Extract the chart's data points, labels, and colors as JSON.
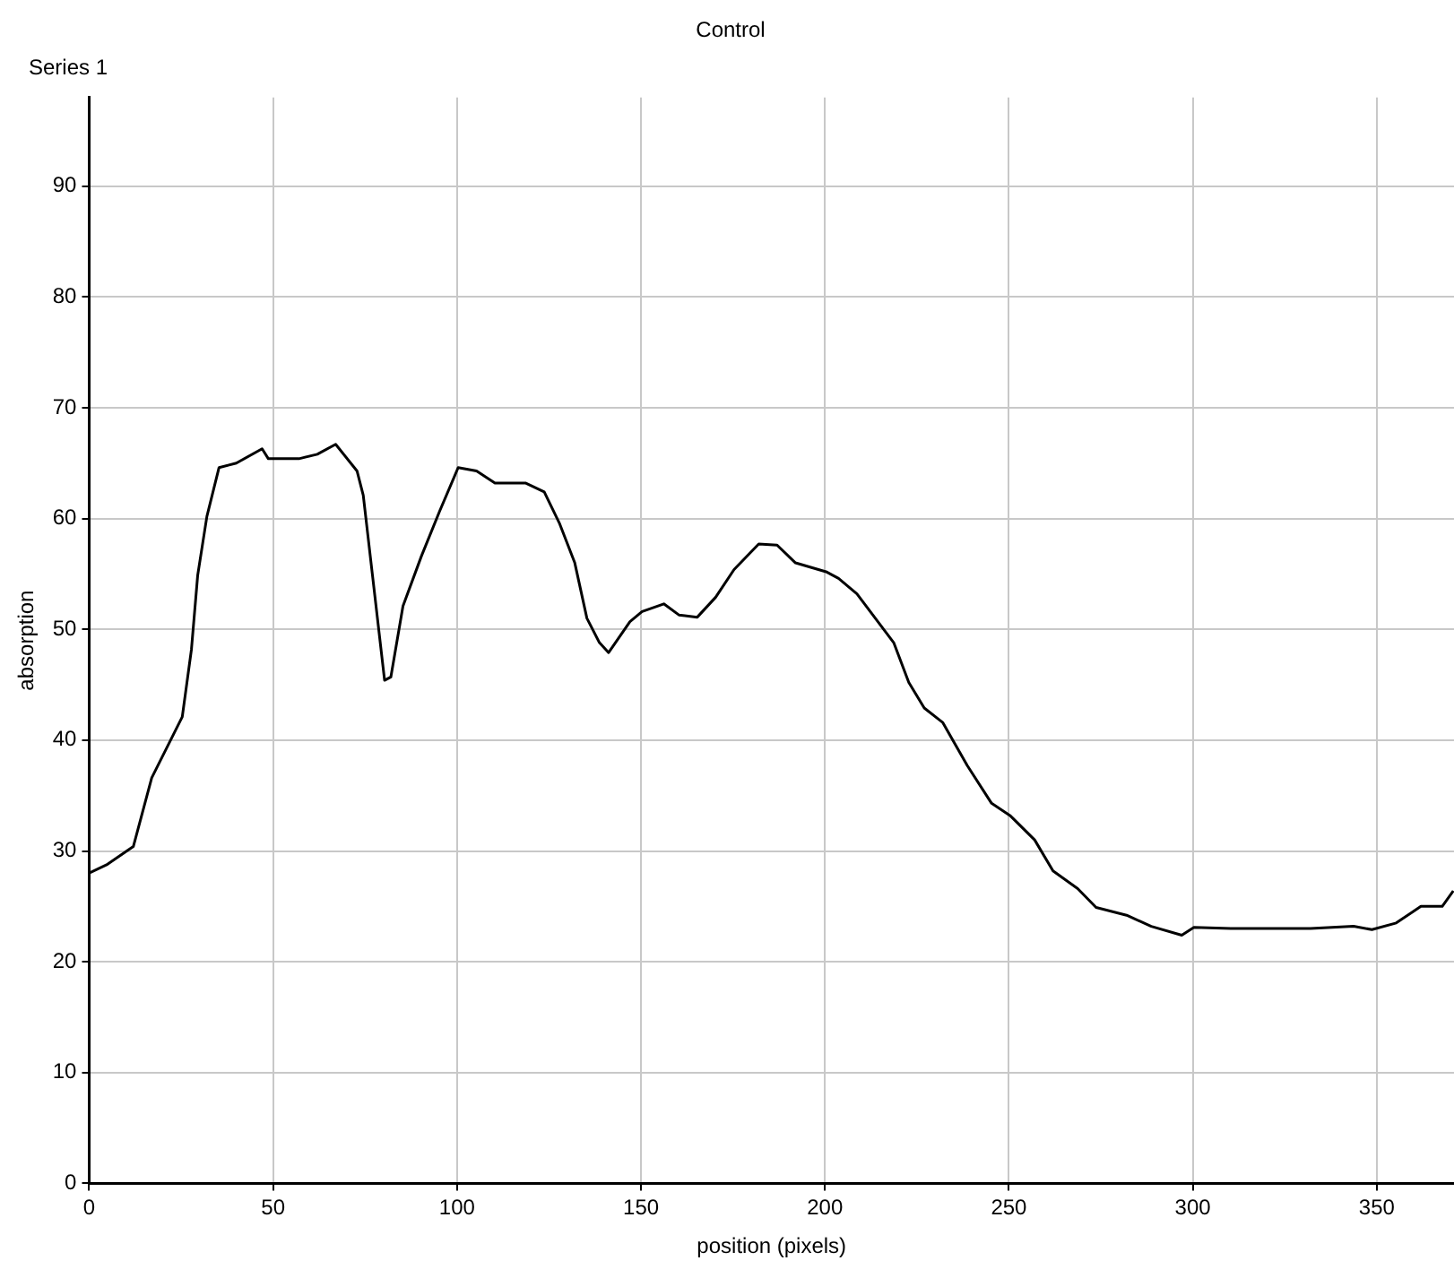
{
  "chart_data": {
    "type": "line",
    "title": "Control",
    "xlabel": "position (pixels)",
    "ylabel": "absorption",
    "xlim": [
      0,
      371
    ],
    "ylim": [
      0,
      98
    ],
    "xticks": [
      0,
      50,
      100,
      150,
      200,
      250,
      300,
      350
    ],
    "yticks": [
      0,
      10,
      20,
      30,
      40,
      50,
      60,
      70,
      80,
      90
    ],
    "grid": true,
    "legend": "top left",
    "marker": "none",
    "line_style": "solid",
    "series": [
      {
        "name": "Series 1",
        "color": "#000000",
        "x": [
          0,
          5,
          12,
          17,
          25.3,
          27.8,
          29.5,
          32,
          35.3,
          40,
          47,
          48.7,
          57,
          62,
          67,
          72.8,
          74.5,
          77,
          80.3,
          82,
          85.3,
          90.3,
          95.3,
          100.3,
          105.3,
          110.3,
          118.7,
          123.7,
          127.8,
          132,
          135.3,
          138.7,
          141.2,
          147,
          150.3,
          156.2,
          160.3,
          165.3,
          170.3,
          175.3,
          182,
          187,
          192,
          200.3,
          203.7,
          208.7,
          213.7,
          218.7,
          222.8,
          227,
          232,
          238.7,
          245.3,
          250.3,
          257,
          262,
          268.7,
          273.7,
          282,
          288.7,
          297,
          300.3,
          310.3,
          332,
          343.7,
          348.7,
          355.3,
          362,
          367.8,
          370.8
        ],
        "values": [
          28,
          28.8,
          30.4,
          36.6,
          42.1,
          48.2,
          54.9,
          60.2,
          64.6,
          65,
          66.3,
          65.4,
          65.4,
          65.8,
          66.7,
          64.3,
          62.1,
          54.9,
          45.4,
          45.7,
          52.1,
          56.6,
          60.7,
          64.6,
          64.3,
          63.2,
          63.2,
          62.4,
          59.6,
          56,
          51,
          48.8,
          47.9,
          50.7,
          51.6,
          52.3,
          51.3,
          51.1,
          52.9,
          55.4,
          57.7,
          57.6,
          56,
          55.2,
          54.6,
          53.2,
          51,
          48.8,
          45.2,
          42.9,
          41.6,
          37.7,
          34.3,
          33.2,
          31,
          28.2,
          26.6,
          24.9,
          24.2,
          23.2,
          22.4,
          23.1,
          23,
          23,
          23.2,
          22.9,
          23.5,
          25,
          25,
          26.4
        ]
      }
    ]
  }
}
